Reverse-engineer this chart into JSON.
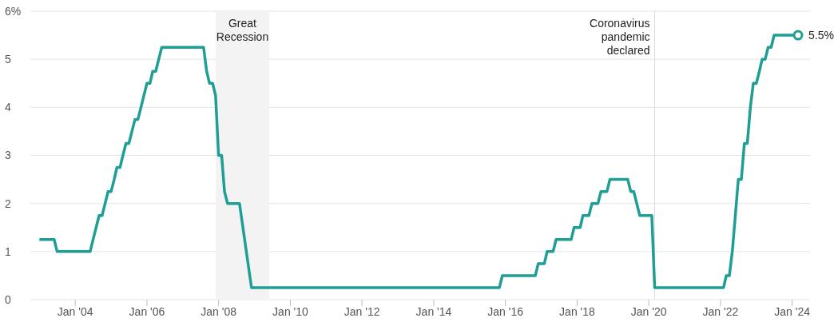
{
  "chart_data": {
    "type": "line",
    "x": [
      "2003-01",
      "2003-06",
      "2003-07",
      "2004-06",
      "2004-07",
      "2004-08",
      "2004-09",
      "2004-10",
      "2004-11",
      "2004-12",
      "2005-01",
      "2005-02",
      "2005-03",
      "2005-04",
      "2005-05",
      "2005-06",
      "2005-07",
      "2005-08",
      "2005-09",
      "2005-10",
      "2005-11",
      "2005-12",
      "2006-01",
      "2006-02",
      "2006-03",
      "2006-04",
      "2006-05",
      "2006-06",
      "2007-08",
      "2007-09",
      "2007-10",
      "2007-11",
      "2007-12",
      "2008-01",
      "2008-02",
      "2008-03",
      "2008-04",
      "2008-08",
      "2008-12",
      "2015-11",
      "2015-12",
      "2016-11",
      "2016-12",
      "2017-02",
      "2017-03",
      "2017-05",
      "2017-06",
      "2017-11",
      "2017-12",
      "2018-02",
      "2018-03",
      "2018-05",
      "2018-06",
      "2018-08",
      "2018-09",
      "2018-11",
      "2018-12",
      "2019-06",
      "2019-07",
      "2019-08",
      "2019-10",
      "2020-02",
      "2020-03",
      "2022-02",
      "2022-03",
      "2022-04",
      "2022-05",
      "2022-06",
      "2022-07",
      "2022-08",
      "2022-09",
      "2022-10",
      "2022-11",
      "2022-12",
      "2023-01",
      "2023-02",
      "2023-03",
      "2023-04",
      "2023-05",
      "2023-06",
      "2023-07",
      "2024-03"
    ],
    "series": [
      {
        "color": "#1f9e95",
        "values": [
          1.25,
          1.25,
          1.0,
          1.0,
          1.25,
          1.5,
          1.75,
          1.75,
          2.0,
          2.25,
          2.25,
          2.5,
          2.75,
          2.75,
          3.0,
          3.25,
          3.25,
          3.5,
          3.75,
          3.75,
          4.0,
          4.25,
          4.5,
          4.5,
          4.75,
          4.75,
          5.0,
          5.25,
          5.25,
          4.75,
          4.5,
          4.5,
          4.25,
          3.0,
          3.0,
          2.25,
          2.0,
          2.0,
          0.25,
          0.25,
          0.5,
          0.5,
          0.75,
          0.75,
          1.0,
          1.0,
          1.25,
          1.25,
          1.5,
          1.5,
          1.75,
          1.75,
          2.0,
          2.0,
          2.25,
          2.25,
          2.5,
          2.5,
          2.25,
          2.25,
          1.75,
          1.75,
          0.25,
          0.25,
          0.5,
          0.5,
          1.0,
          1.75,
          2.5,
          2.5,
          3.25,
          3.25,
          4.0,
          4.5,
          4.5,
          4.75,
          5.0,
          5.0,
          5.25,
          5.25,
          5.5,
          5.5
        ]
      }
    ],
    "xlim": [
      "2002-10",
      "2024-07"
    ],
    "xticks": [
      {
        "value": "2004-01",
        "label": "Jan '04"
      },
      {
        "value": "2006-01",
        "label": "Jan '06"
      },
      {
        "value": "2008-01",
        "label": "Jan '08"
      },
      {
        "value": "2010-01",
        "label": "Jan '10"
      },
      {
        "value": "2012-01",
        "label": "Jan '12"
      },
      {
        "value": "2014-01",
        "label": "Jan '14"
      },
      {
        "value": "2016-01",
        "label": "Jan '16"
      },
      {
        "value": "2018-01",
        "label": "Jan '18"
      },
      {
        "value": "2020-01",
        "label": "Jan '20"
      },
      {
        "value": "2022-01",
        "label": "Jan '22"
      },
      {
        "value": "2024-01",
        "label": "Jan '24"
      }
    ],
    "ylim": [
      0,
      6
    ],
    "yticks": [
      0,
      1,
      2,
      3,
      4,
      5,
      {
        "value": 6,
        "label": "6%"
      }
    ],
    "grid": "y",
    "marker": "none",
    "bands": [
      {
        "axis": "x",
        "from": "2007-12",
        "to": "2009-06",
        "label": "Great Recession",
        "color": "#f3f3f3"
      }
    ],
    "ref_lines": [
      {
        "axis": "x",
        "value": "2020-03",
        "label": "Coronavirus pandemic declared",
        "color": "#dddddd"
      }
    ],
    "annotations": [
      {
        "text": "5.5%",
        "x": "2024-03",
        "y": 5.5
      }
    ]
  }
}
